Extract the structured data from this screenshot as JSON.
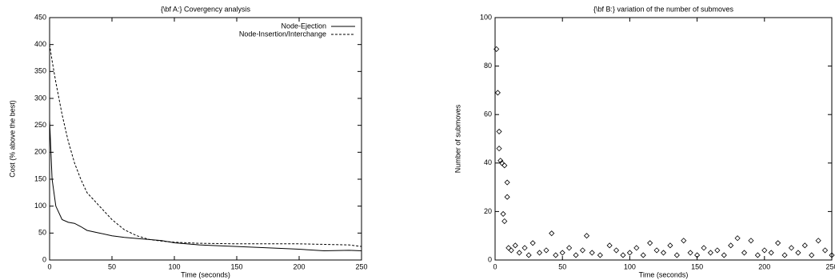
{
  "chart_data": [
    {
      "type": "line",
      "title": "{\\bf A:} Covergency analysis",
      "x_label": "Time (seconds)",
      "y_label": "Cost (% above the best)",
      "x": [
        0,
        2,
        5,
        10,
        15,
        20,
        25,
        30,
        40,
        50,
        60,
        70,
        80,
        90,
        100,
        120,
        150,
        180,
        200,
        220,
        240,
        250
      ],
      "series": [
        {
          "name": "Node-Ejection",
          "color": "#000000",
          "style": "solid",
          "values": [
            260,
            150,
            100,
            75,
            70,
            68,
            62,
            55,
            50,
            45,
            42,
            40,
            38,
            36,
            32,
            28,
            25,
            22,
            20,
            17,
            18,
            17
          ]
        },
        {
          "name": "Node-Insertion/Interchange",
          "color": "#000000",
          "style": "dashed",
          "values": [
            400,
            370,
            330,
            270,
            220,
            180,
            150,
            125,
            100,
            75,
            56,
            45,
            38,
            35,
            33,
            31,
            30,
            30,
            30,
            29,
            28,
            25
          ]
        }
      ],
      "xlim": [
        0,
        250
      ],
      "xticks": [
        0,
        50,
        100,
        150,
        200,
        250
      ],
      "ylim": [
        0,
        450
      ],
      "yticks": [
        0,
        50,
        100,
        150,
        200,
        250,
        300,
        350,
        400,
        450
      ],
      "legend": "top-right"
    },
    {
      "type": "scatter",
      "title": "{\\bf B:} variation of the number of submoves",
      "x_label": "Time (seconds)",
      "y_label": "Number of submoves",
      "x": [
        1,
        2,
        3,
        3,
        4,
        5,
        6,
        7,
        7,
        9,
        9,
        10,
        12,
        15,
        18,
        22,
        25,
        28,
        33,
        38,
        42,
        45,
        50,
        55,
        60,
        65,
        68,
        72,
        78,
        85,
        90,
        95,
        100,
        105,
        110,
        115,
        120,
        125,
        130,
        135,
        140,
        145,
        150,
        155,
        160,
        165,
        170,
        175,
        180,
        185,
        190,
        195,
        200,
        205,
        210,
        215,
        220,
        225,
        230,
        235,
        240,
        245,
        250
      ],
      "values": [
        87,
        69,
        53,
        46,
        41,
        40,
        19,
        39,
        16,
        32,
        26,
        5,
        4,
        6,
        3,
        5,
        2,
        7,
        3,
        4,
        11,
        2,
        3,
        5,
        2,
        4,
        10,
        3,
        2,
        6,
        4,
        2,
        3,
        5,
        2,
        7,
        4,
        3,
        6,
        2,
        8,
        3,
        2,
        5,
        3,
        4,
        2,
        6,
        9,
        3,
        8,
        2,
        4,
        3,
        7,
        2,
        5,
        3,
        6,
        2,
        8,
        4,
        2
      ],
      "color": "#000000",
      "marker": "diamond",
      "xlim": [
        0,
        250
      ],
      "xticks": [
        0,
        50,
        100,
        150,
        200,
        250
      ],
      "ylim": [
        0,
        100
      ],
      "yticks": [
        0,
        20,
        40,
        60,
        80,
        100
      ]
    }
  ]
}
